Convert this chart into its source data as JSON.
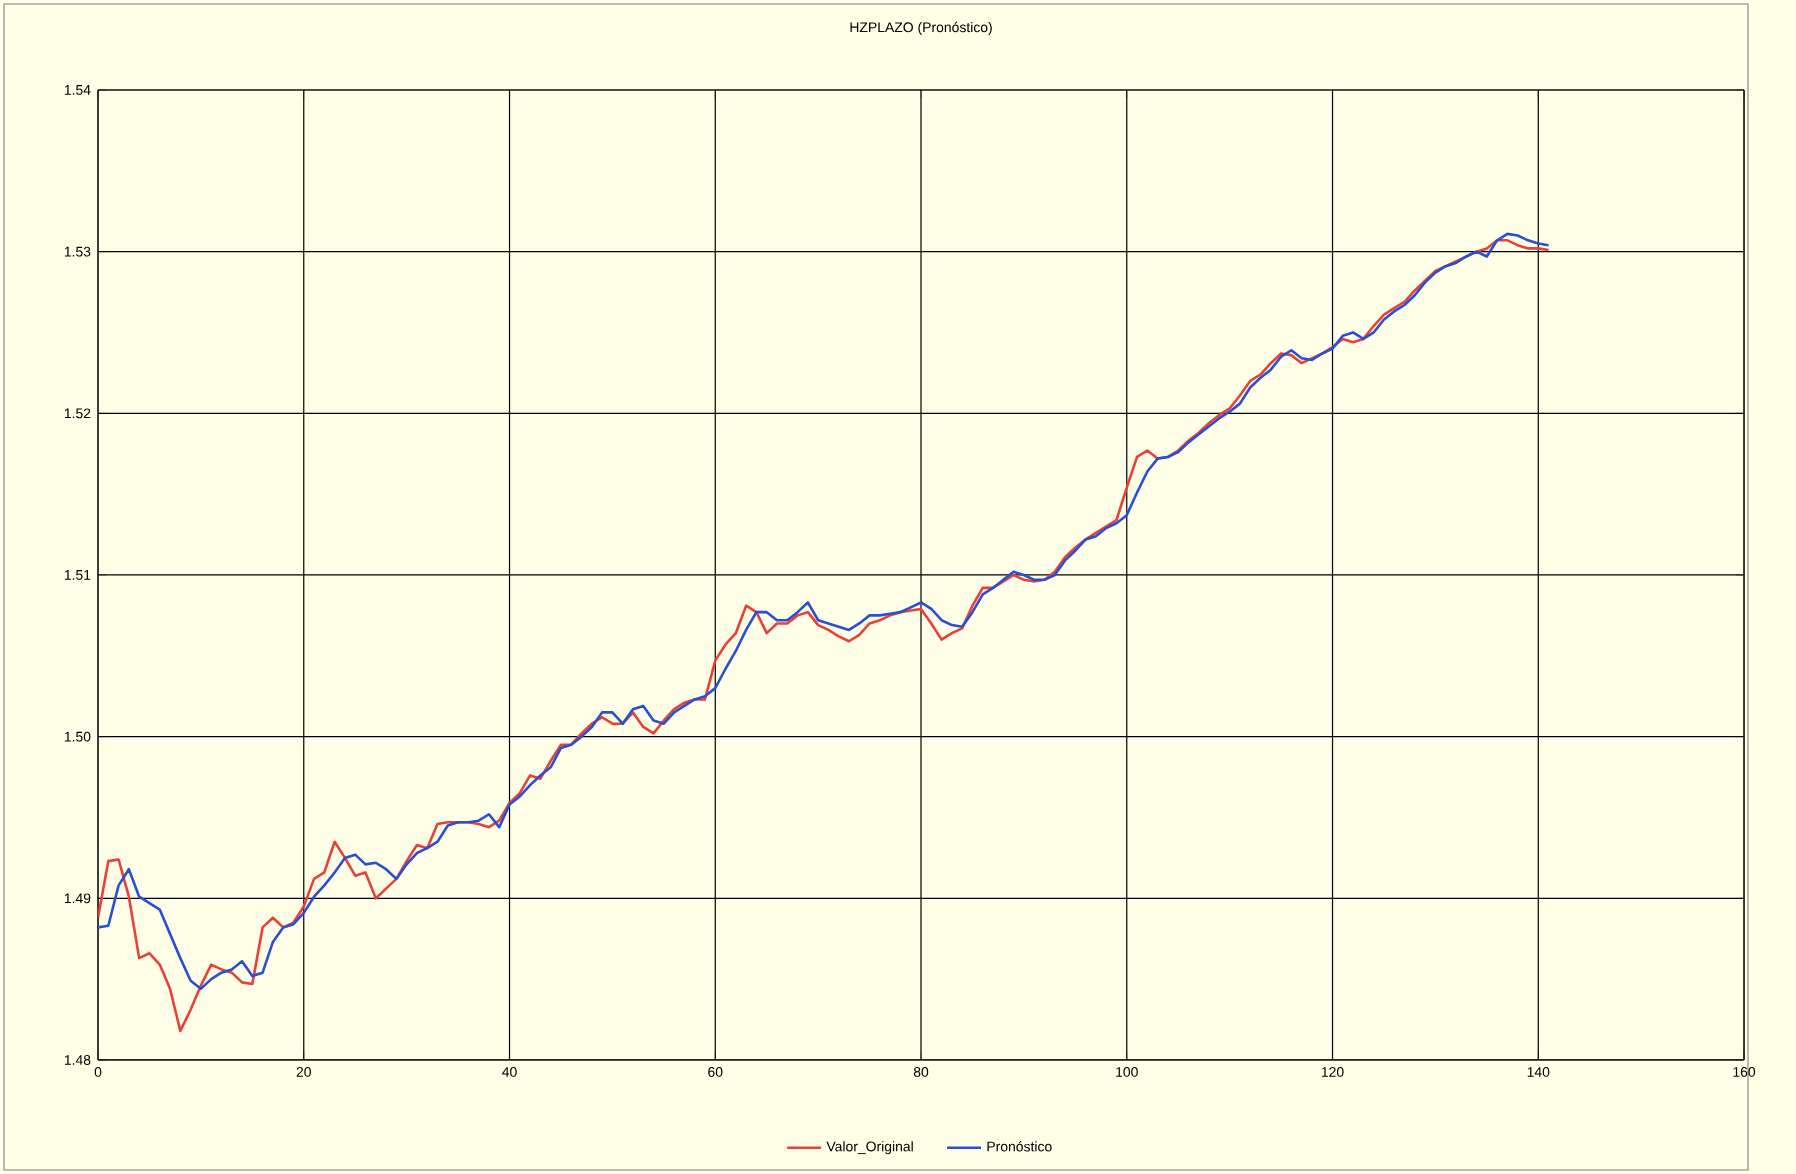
{
  "chart_data": {
    "type": "line",
    "title": "HZPLAZO (Pronóstico)",
    "x": [
      0,
      1,
      2,
      3,
      4,
      5,
      6,
      7,
      8,
      9,
      10,
      11,
      12,
      13,
      14,
      15,
      16,
      17,
      18,
      19,
      20,
      21,
      22,
      23,
      24,
      25,
      26,
      27,
      28,
      29,
      30,
      31,
      32,
      33,
      34,
      35,
      36,
      37,
      38,
      39,
      40,
      41,
      42,
      43,
      44,
      45,
      46,
      47,
      48,
      49,
      50,
      51,
      52,
      53,
      54,
      55,
      56,
      57,
      58,
      59,
      60,
      61,
      62,
      63,
      64,
      65,
      66,
      67,
      68,
      69,
      70,
      71,
      72,
      73,
      74,
      75,
      76,
      77,
      78,
      79,
      80,
      81,
      82,
      83,
      84,
      85,
      86,
      87,
      88,
      89,
      90,
      91,
      92,
      93,
      94,
      95,
      96,
      97,
      98,
      99,
      100,
      101,
      102,
      103,
      104,
      105,
      106,
      107,
      108,
      109,
      110,
      111,
      112,
      113,
      114,
      115,
      116,
      117,
      118,
      119,
      120,
      121,
      122,
      123,
      124,
      125,
      126,
      127,
      128,
      129,
      130,
      131,
      132,
      133,
      134,
      135,
      136,
      137,
      138,
      139,
      140,
      141
    ],
    "series": [
      {
        "name": "Valor_Original",
        "color": "#e8413a",
        "values": [
          1.4888,
          1.4923,
          1.4924,
          1.4901,
          1.4863,
          1.4866,
          1.4859,
          1.4844,
          1.4818,
          1.4831,
          1.4846,
          1.4859,
          1.4856,
          1.4854,
          1.4848,
          1.4847,
          1.4882,
          1.4888,
          1.4882,
          1.4885,
          1.4895,
          1.4912,
          1.4916,
          1.4935,
          1.4925,
          1.4914,
          1.4916,
          1.49,
          1.4906,
          1.4912,
          1.4923,
          1.4933,
          1.4931,
          1.4946,
          1.4947,
          1.4947,
          1.4947,
          1.4946,
          1.4944,
          1.4948,
          1.4959,
          1.4965,
          1.4976,
          1.4974,
          1.4985,
          1.4995,
          1.4995,
          1.5002,
          1.5008,
          1.5012,
          1.5008,
          1.5008,
          1.5015,
          1.5006,
          1.5002,
          1.501,
          1.5017,
          1.5021,
          1.5023,
          1.5023,
          1.5047,
          1.5057,
          1.5064,
          1.5081,
          1.5077,
          1.5064,
          1.507,
          1.507,
          1.5075,
          1.5077,
          1.5069,
          1.5066,
          1.5062,
          1.5059,
          1.5063,
          1.507,
          1.5072,
          1.5075,
          1.5077,
          1.5078,
          1.5079,
          1.507,
          1.506,
          1.5064,
          1.5067,
          1.5081,
          1.5092,
          1.5092,
          1.5096,
          1.51,
          1.5097,
          1.5096,
          1.5097,
          1.5102,
          1.5111,
          1.5117,
          1.5122,
          1.5126,
          1.513,
          1.5134,
          1.5154,
          1.5173,
          1.5177,
          1.5172,
          1.5173,
          1.5177,
          1.5183,
          1.5188,
          1.5194,
          1.5199,
          1.5203,
          1.5211,
          1.522,
          1.5224,
          1.5231,
          1.5237,
          1.5236,
          1.5231,
          1.5234,
          1.5237,
          1.5241,
          1.5246,
          1.5244,
          1.5246,
          1.5254,
          1.5261,
          1.5265,
          1.5269,
          1.5276,
          1.5282,
          1.5288,
          1.5291,
          1.5294,
          1.5297,
          1.53,
          1.5302,
          1.5307,
          1.5307,
          1.5304,
          1.5302,
          1.5302,
          1.5301
        ]
      },
      {
        "name": "Pronóstico",
        "color": "#2a4fd0",
        "values": [
          1.4882,
          1.4883,
          1.4908,
          1.4918,
          1.4901,
          1.4897,
          1.4893,
          1.4878,
          1.4863,
          1.4849,
          1.4844,
          1.485,
          1.4854,
          1.4856,
          1.4861,
          1.4852,
          1.4854,
          1.4873,
          1.4882,
          1.4884,
          1.4891,
          1.4901,
          1.4908,
          1.4916,
          1.4925,
          1.4927,
          1.4921,
          1.4922,
          1.4918,
          1.4912,
          1.4921,
          1.4928,
          1.4931,
          1.4935,
          1.4945,
          1.4947,
          1.4947,
          1.4948,
          1.4952,
          1.4944,
          1.4958,
          1.4963,
          1.497,
          1.4976,
          1.4981,
          1.4993,
          1.4995,
          1.5,
          1.5006,
          1.5015,
          1.5015,
          1.5008,
          1.5017,
          1.5019,
          1.501,
          1.5008,
          1.5015,
          1.5019,
          1.5023,
          1.5025,
          1.503,
          1.5042,
          1.5053,
          1.5066,
          1.5077,
          1.5077,
          1.5072,
          1.5072,
          1.5077,
          1.5083,
          1.5072,
          1.507,
          1.5068,
          1.5066,
          1.507,
          1.5075,
          1.5075,
          1.5076,
          1.5077,
          1.508,
          1.5083,
          1.5079,
          1.5072,
          1.5069,
          1.5068,
          1.5077,
          1.5088,
          1.5092,
          1.5097,
          1.5102,
          1.51,
          1.5097,
          1.5097,
          1.51,
          1.5109,
          1.5115,
          1.5122,
          1.5124,
          1.5129,
          1.5132,
          1.5137,
          1.5151,
          1.5164,
          1.5172,
          1.5173,
          1.5176,
          1.5182,
          1.5187,
          1.5192,
          1.5197,
          1.5201,
          1.5206,
          1.5216,
          1.5222,
          1.5227,
          1.5235,
          1.5239,
          1.5234,
          1.5233,
          1.5237,
          1.524,
          1.5248,
          1.525,
          1.5246,
          1.525,
          1.5258,
          1.5263,
          1.5267,
          1.5273,
          1.5281,
          1.5287,
          1.5291,
          1.5293,
          1.5297,
          1.53,
          1.5297,
          1.5307,
          1.5311,
          1.531,
          1.5307,
          1.5305,
          1.5304
        ]
      }
    ],
    "xlim": [
      0,
      160
    ],
    "xticks": [
      0,
      20,
      40,
      60,
      80,
      100,
      120,
      140,
      160
    ],
    "ylim": [
      1.48,
      1.54
    ],
    "yticks": [
      1.48,
      1.49,
      {
        "value": 1.5,
        "label": "1.50"
      },
      1.51,
      1.52,
      1.53,
      1.54
    ],
    "grid": true,
    "legend": "bottom",
    "marker": "none",
    "line_style": "solid"
  }
}
